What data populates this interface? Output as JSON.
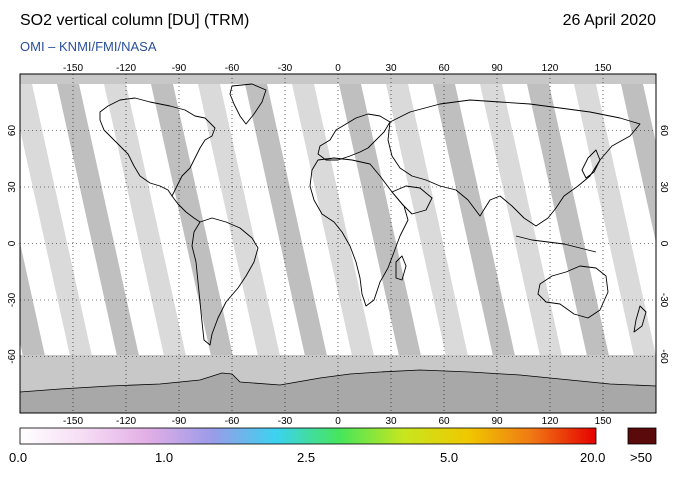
{
  "header": {
    "title": "SO2 vertical column [DU] (TRM)",
    "date": "26 April 2020",
    "subtitle": "OMI  –  KNMI/FMI/NASA"
  },
  "map": {
    "projection": "equirectangular",
    "lon_range": [
      -180,
      180
    ],
    "lat_range": [
      -90,
      90
    ],
    "lon_ticks": [
      -150,
      -120,
      -90,
      -60,
      -30,
      0,
      30,
      60,
      90,
      120,
      150
    ],
    "lat_ticks": [
      60,
      30,
      0,
      -30,
      -60
    ],
    "swath_color_dark": "#aaaaaa",
    "swath_color_light": "#d4d4d4",
    "polar_fill": "#c8c8c8",
    "antarctica_fill": "#a8a8a8"
  },
  "colorbar": {
    "labels": [
      "0.0",
      "1.0",
      "2.5",
      "5.0",
      "20.0"
    ],
    "over_label": ">50",
    "over_color": "#5a0a0a",
    "stops": [
      "#ffffff",
      "#f6dcf4",
      "#e2aee6",
      "#9b9be8",
      "#3cd2f0",
      "#46e65a",
      "#c8e61e",
      "#f0c800",
      "#f07814",
      "#e60000"
    ]
  }
}
